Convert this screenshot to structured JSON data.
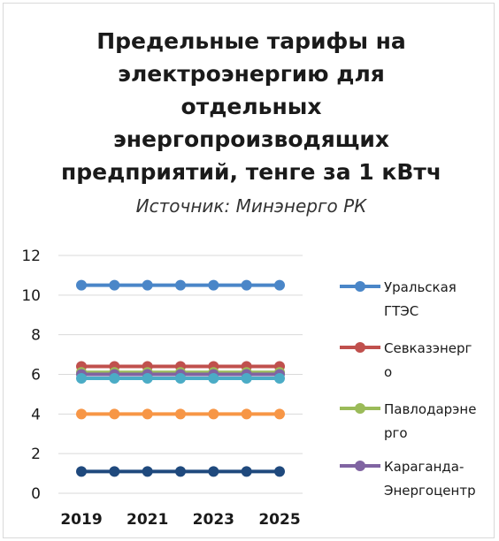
{
  "chart_data": {
    "type": "line",
    "title": "Предельные тарифы на электроэнергию для отдельных энергопроизводящих предприятий, тенге за 1 кВтч",
    "title_lines": [
      "Предельные тарифы на",
      "электроэнергию для",
      "отдельных",
      "энергопроизводящих",
      "предприятий, тенге за 1 кВтч"
    ],
    "subtitle": "Источник: Минэнерго РК",
    "x": [
      2019,
      2020,
      2021,
      2022,
      2023,
      2024,
      2025
    ],
    "x_tick_labels": [
      "2019",
      "2021",
      "2023",
      "2025"
    ],
    "ylim": [
      0,
      12
    ],
    "y_ticks": [
      0,
      2,
      4,
      6,
      8,
      10,
      12
    ],
    "grid": true,
    "legend_position": "right",
    "series": [
      {
        "name": "Уральская ГТЭС",
        "legend_lines": [
          "Уральская",
          "ГТЭС"
        ],
        "color": "#4a86c8",
        "values": [
          10.5,
          10.5,
          10.5,
          10.5,
          10.5,
          10.5,
          10.5
        ],
        "in_legend": true
      },
      {
        "name": "Севказэнерго",
        "legend_lines": [
          "Севказэнерг",
          "о"
        ],
        "color": "#c0504d",
        "values": [
          6.4,
          6.4,
          6.4,
          6.4,
          6.4,
          6.4,
          6.4
        ],
        "in_legend": true
      },
      {
        "name": "Павлодарэнерго",
        "legend_lines": [
          "Павлодарэне",
          "рго"
        ],
        "color": "#9bbb59",
        "values": [
          6.1,
          6.1,
          6.1,
          6.1,
          6.1,
          6.1,
          6.1
        ],
        "in_legend": true
      },
      {
        "name": "Караганда-Энергоцентр",
        "legend_lines": [
          "Караганда-",
          "Энергоцентр"
        ],
        "color": "#8064a2",
        "values": [
          6.0,
          6.0,
          6.0,
          6.0,
          6.0,
          6.0,
          6.0
        ],
        "in_legend": true
      },
      {
        "name": "",
        "color": "#4bacc6",
        "values": [
          5.8,
          5.8,
          5.8,
          5.8,
          5.8,
          5.8,
          5.8
        ],
        "in_legend": false
      },
      {
        "name": "",
        "color": "#f79646",
        "values": [
          4.0,
          4.0,
          4.0,
          4.0,
          4.0,
          4.0,
          4.0
        ],
        "in_legend": false
      },
      {
        "name": "",
        "color": "#1f497d",
        "values": [
          1.1,
          1.1,
          1.1,
          1.1,
          1.1,
          1.1,
          1.1
        ],
        "in_legend": false
      }
    ]
  }
}
